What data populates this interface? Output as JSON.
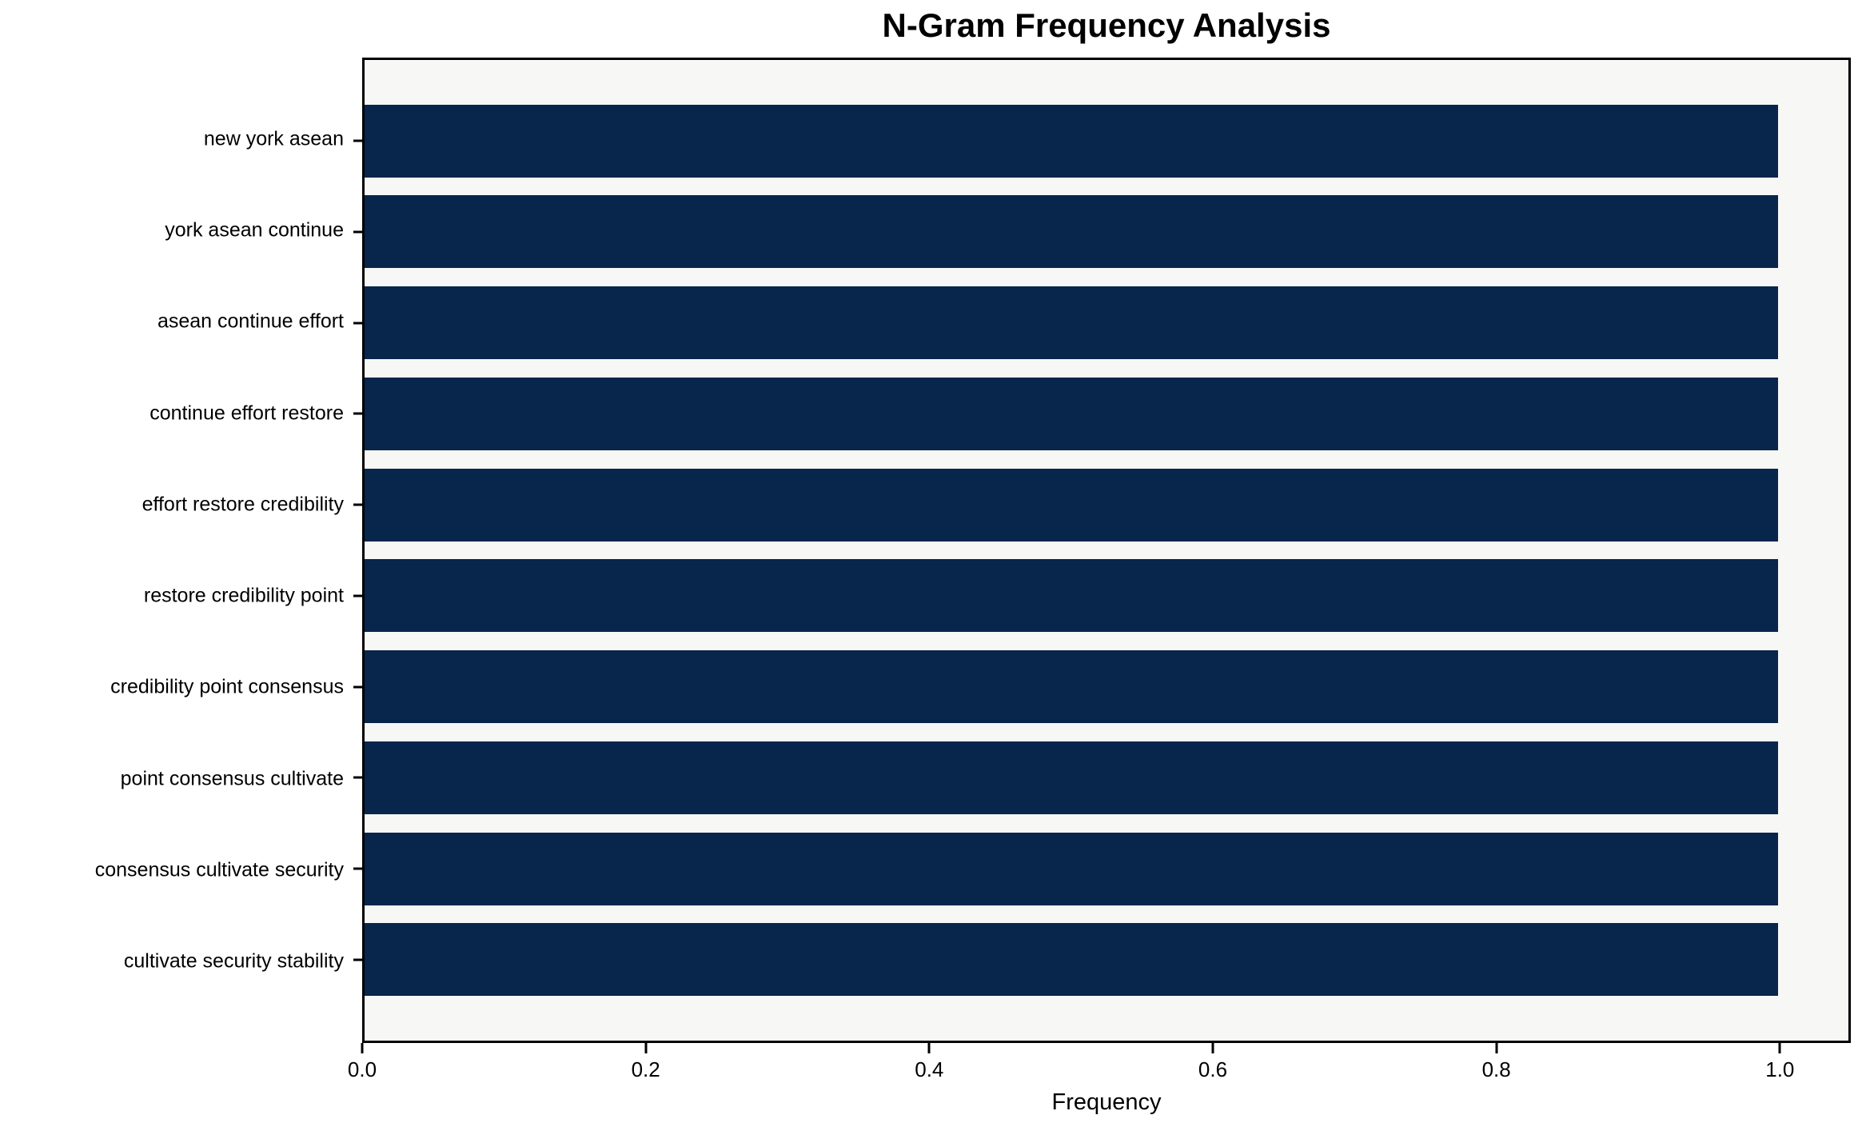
{
  "chart_data": {
    "type": "bar",
    "orientation": "horizontal",
    "title": "N-Gram Frequency Analysis",
    "xlabel": "Frequency",
    "ylabel": "",
    "categories": [
      "new york asean",
      "york asean continue",
      "asean continue effort",
      "continue effort restore",
      "effort restore credibility",
      "restore credibility point",
      "credibility point consensus",
      "point consensus cultivate",
      "consensus cultivate security",
      "cultivate security stability"
    ],
    "values": [
      1.0,
      1.0,
      1.0,
      1.0,
      1.0,
      1.0,
      1.0,
      1.0,
      1.0,
      1.0
    ],
    "x_ticks": [
      0.0,
      0.2,
      0.4,
      0.6,
      0.8,
      1.0
    ],
    "x_tick_labels": [
      "0.0",
      "0.2",
      "0.4",
      "0.6",
      "0.8",
      "1.0"
    ],
    "xlim": [
      0,
      1.05
    ],
    "grid": false,
    "legend": null,
    "colors": {
      "bar": "#08254c",
      "plot_background": "#f7f7f5",
      "figure_background": "#ffffff",
      "text": "#000000",
      "spine": "#000000"
    }
  }
}
